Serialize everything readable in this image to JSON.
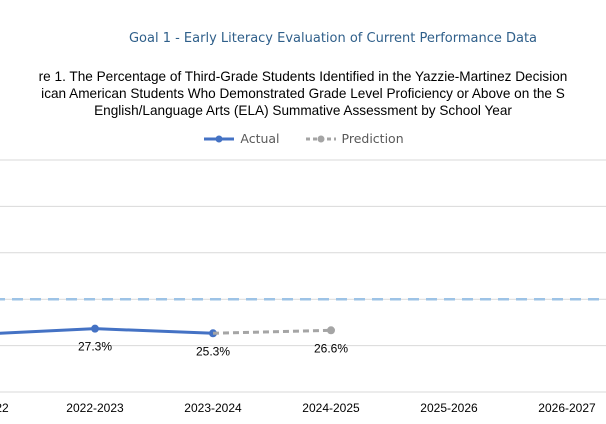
{
  "page": {
    "section_heading": "Goal 1 -  Early Literacy Evaluation of Current Performance Data"
  },
  "chart_data": {
    "type": "line",
    "title_lines": [
      "re 1. The Percentage of Third-Grade Students Identified in the Yazzie-Martinez Decision",
      "ican American Students  Who Demonstrated Grade Level Proficiency or Above on the S",
      "English/Language Arts (ELA) Summative  Assessment by School Year"
    ],
    "categories": [
      "22",
      "2022-2023",
      "2023-2024",
      "2024-2025",
      "2025-2026",
      "2026-2027"
    ],
    "series": [
      {
        "name": "Actual",
        "color": "#4472c4",
        "style": "solid",
        "points": [
          {
            "x": "22",
            "y": 25.2
          },
          {
            "x": "2022-2023",
            "y": 27.3
          },
          {
            "x": "2023-2024",
            "y": 25.3
          }
        ]
      },
      {
        "name": "Prediction",
        "color": "#a5a5a5",
        "style": "dashed",
        "points": [
          {
            "x": "2023-2024",
            "y": 25.3
          },
          {
            "x": "2024-2025",
            "y": 26.6
          }
        ]
      }
    ],
    "data_labels": [
      {
        "x": "2022-2023",
        "y": 27.3,
        "text": "27.3%"
      },
      {
        "x": "2023-2024",
        "y": 25.3,
        "text": "25.3%"
      },
      {
        "x": "2024-2025",
        "y": 26.6,
        "text": "26.6%"
      }
    ],
    "target_line": {
      "y": 40,
      "color": "#9dc3e6",
      "style": "dashed"
    },
    "ylim": [
      0,
      100
    ],
    "grid": true,
    "legend_position": "top-center"
  }
}
